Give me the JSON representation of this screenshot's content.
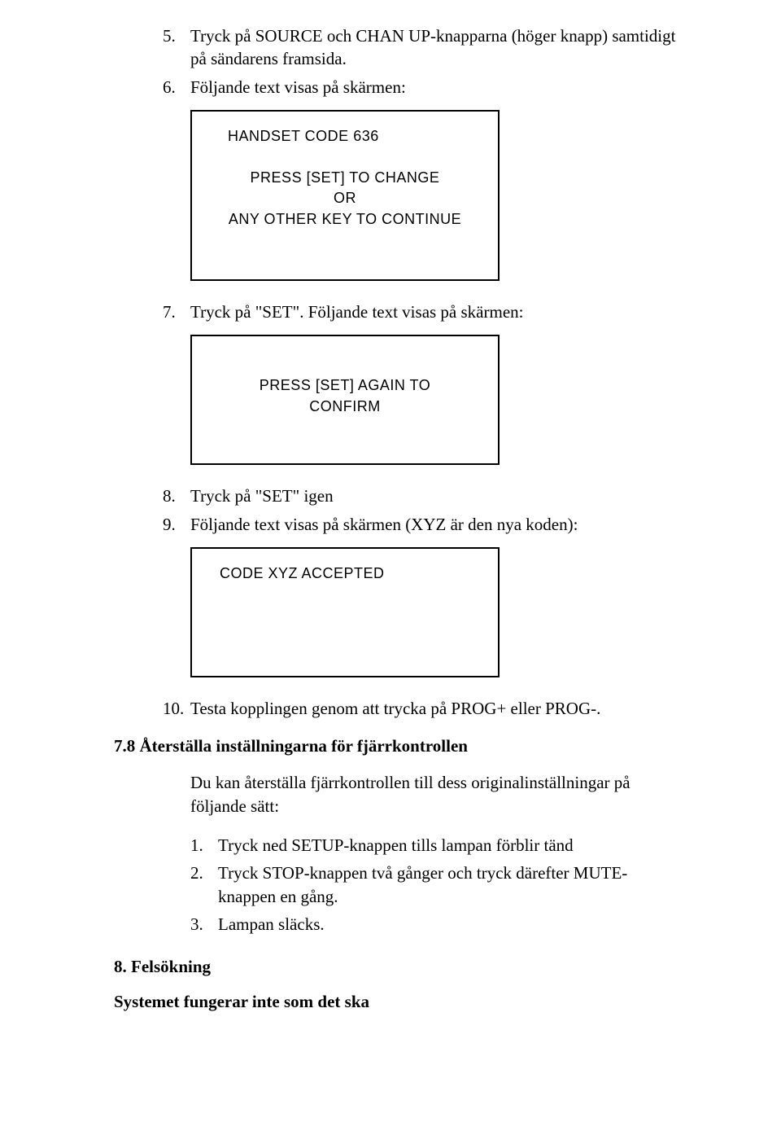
{
  "items": {
    "i5": {
      "num": "5.",
      "text": "Tryck på SOURCE och CHAN UP-knapparna (höger knapp) samtidigt på sändarens framsida."
    },
    "i6": {
      "num": "6.",
      "text": "Följande text visas på skärmen:"
    },
    "i7": {
      "num": "7.",
      "text": "Tryck på \"SET\". Följande text visas på skärmen:"
    },
    "i8": {
      "num": "8.",
      "text": "Tryck på \"SET\" igen"
    },
    "i9": {
      "num": "9.",
      "text": "Följande text visas på skärmen (XYZ är den nya koden):"
    },
    "i10": {
      "num": "10.",
      "text": "Testa kopplingen genom att trycka på PROG+ eller PROG-."
    }
  },
  "box1": {
    "l1": "HANDSET CODE 636",
    "l2": "PRESS [SET] TO CHANGE",
    "l3": "OR",
    "l4": "ANY OTHER KEY TO CONTINUE"
  },
  "box2": {
    "l1": "PRESS [SET] AGAIN TO",
    "l2": "CONFIRM"
  },
  "box3": {
    "l1": "CODE XYZ ACCEPTED"
  },
  "sec78": {
    "heading": "7.8 Återställa inställningarna för fjärrkontrollen",
    "para": "Du kan återställa fjärrkontrollen till dess originalinställningar på följande sätt:",
    "s1": {
      "num": "1.",
      "text": "Tryck ned SETUP-knappen tills lampan förblir tänd"
    },
    "s2": {
      "num": "2.",
      "text": "Tryck STOP-knappen två gånger och tryck därefter MUTE-knappen en gång."
    },
    "s3": {
      "num": "3.",
      "text": "Lampan släcks."
    }
  },
  "sec8": {
    "heading": "8. Felsökning",
    "sub": "Systemet fungerar inte som det ska"
  }
}
